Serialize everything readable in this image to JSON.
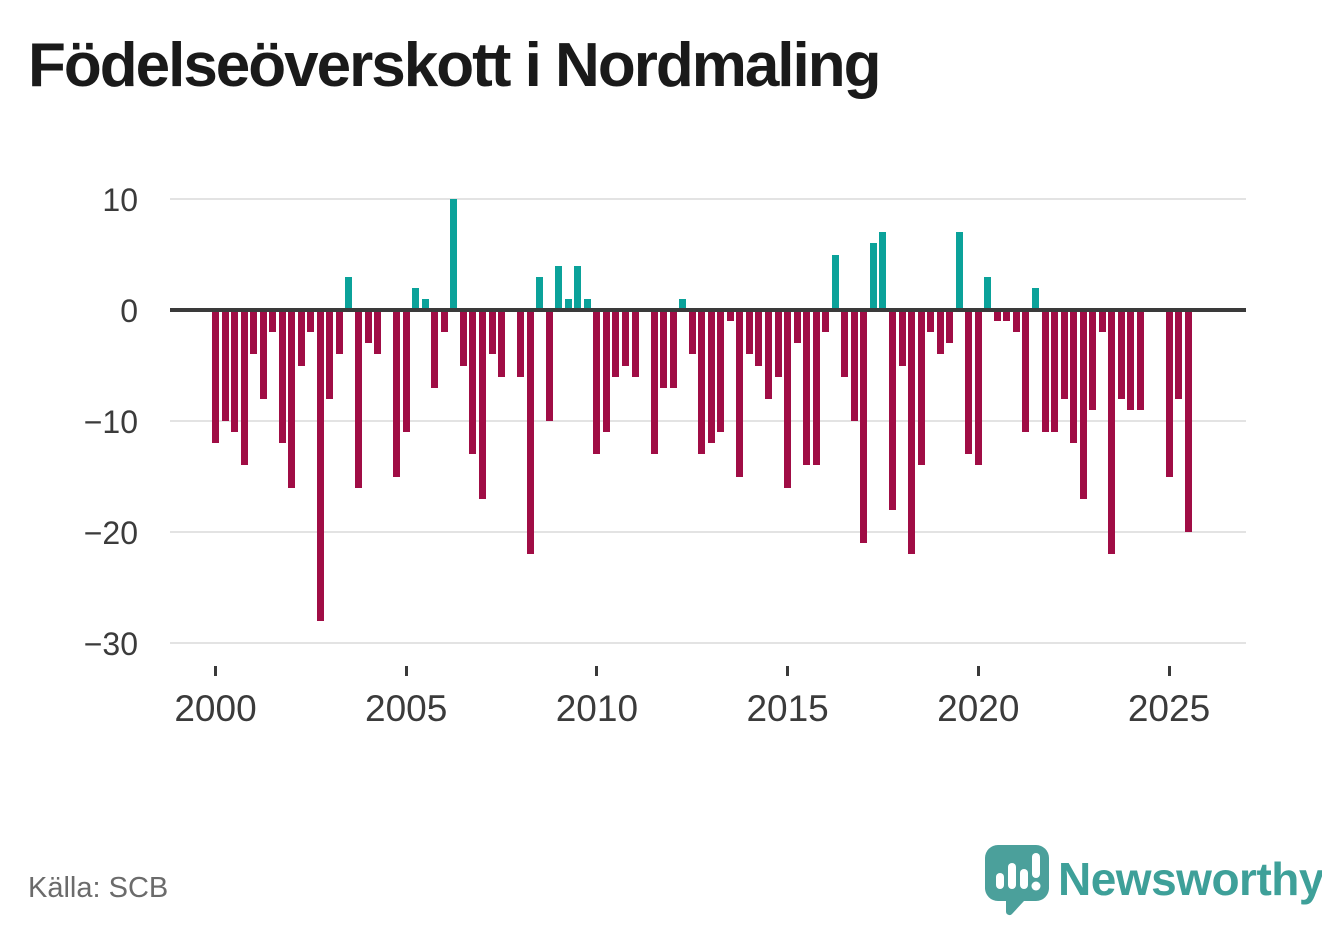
{
  "title": "Födelseöverskott i Nordmaling",
  "source": "Källa: SCB",
  "branding": {
    "name": "Newsworthy",
    "logo_icon": "speech-bubble-bar-chart",
    "color": "#3ea099"
  },
  "chart_data": {
    "type": "bar",
    "title": "Födelseöverskott i Nordmaling",
    "frequency": "quarterly",
    "start": "2000-Q1",
    "end": "2025-Q3",
    "xlabel": "",
    "ylabel": "",
    "ylim": [
      -30,
      12
    ],
    "grid": "horizontal",
    "legend": "none",
    "y_ticks": [
      10,
      0,
      -10,
      -20,
      -30
    ],
    "y_tick_labels": [
      "10",
      "0",
      "−10",
      "−20",
      "−30"
    ],
    "x_tick_years": [
      2000,
      2005,
      2010,
      2015,
      2020,
      2025
    ],
    "x_tick_labels": [
      "2000",
      "2005",
      "2010",
      "2015",
      "2020",
      "2025"
    ],
    "positive_color": "#0ba29a",
    "negative_color": "#a00d45",
    "series": [
      {
        "name": "Födelseöverskott",
        "values": [
          -12,
          -10,
          -11,
          -14,
          -4,
          -8,
          -2,
          -12,
          -16,
          -5,
          -2,
          -28,
          -8,
          -4,
          3,
          -16,
          -3,
          -4,
          0,
          -15,
          -11,
          2,
          1,
          -7,
          -2,
          10,
          -5,
          -13,
          -17,
          -4,
          -6,
          0,
          -6,
          -22,
          3,
          -10,
          4,
          1,
          4,
          1,
          -13,
          -11,
          -6,
          -5,
          -6,
          0,
          -13,
          -7,
          -7,
          1,
          -4,
          -13,
          -12,
          -11,
          -1,
          -15,
          -4,
          -5,
          -8,
          -6,
          -16,
          -3,
          -14,
          -14,
          -2,
          5,
          -6,
          -10,
          -21,
          6,
          7,
          -18,
          -5,
          -22,
          -14,
          -2,
          -4,
          -3,
          7,
          -13,
          -14,
          3,
          -1,
          -1,
          -2,
          -11,
          2,
          -11,
          -11,
          -8,
          -12,
          -17,
          -9,
          -2,
          -22,
          -8,
          -9,
          -9,
          0,
          0,
          -15,
          -8,
          -20
        ]
      }
    ]
  }
}
